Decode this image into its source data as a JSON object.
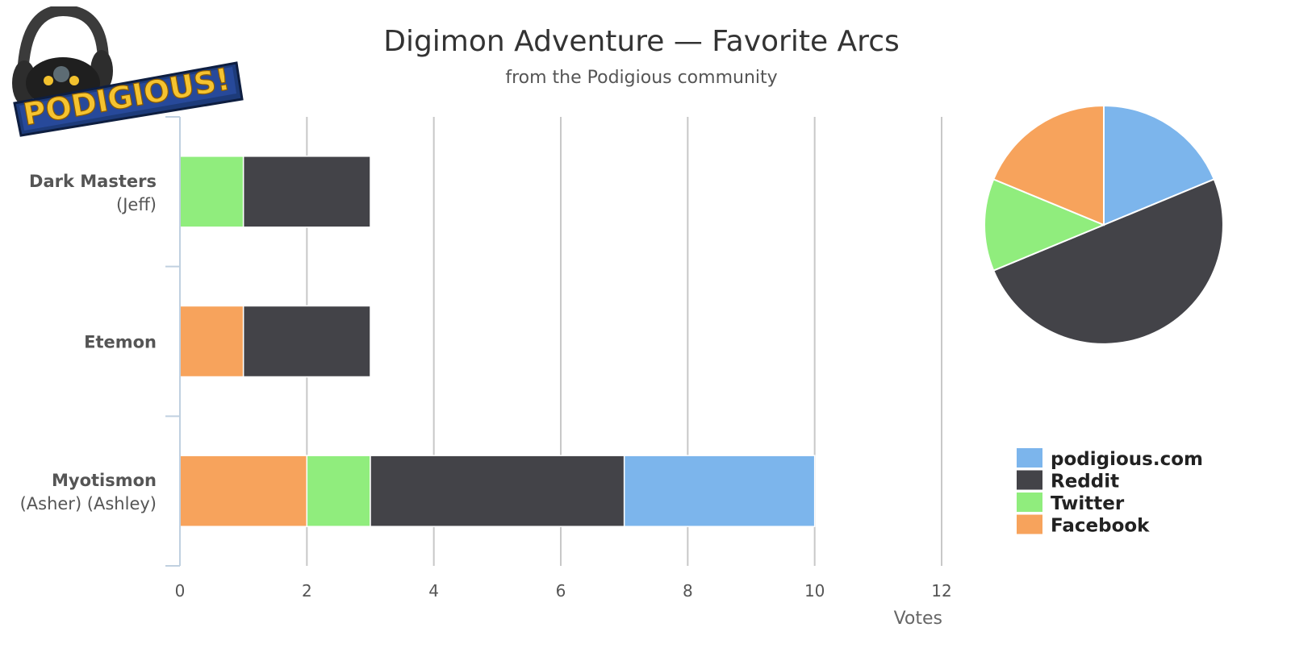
{
  "logo": {
    "text": "PODIGIOUS!"
  },
  "chart_data": [
    {
      "type": "bar",
      "orientation": "horizontal",
      "stacked": true,
      "title": "Digimon Adventure — Favorite Arcs",
      "subtitle": "from the Podigious community",
      "categories": [
        {
          "name": "Dark Masters",
          "detail": "(Jeff)"
        },
        {
          "name": "Etemon",
          "detail": ""
        },
        {
          "name": "Myotismon",
          "detail": "(Asher) (Ashley)"
        }
      ],
      "series": [
        {
          "name": "Facebook",
          "color": "#f7a35c",
          "values": [
            0,
            1,
            2
          ]
        },
        {
          "name": "Twitter",
          "color": "#90ed7d",
          "values": [
            1,
            0,
            1
          ]
        },
        {
          "name": "Reddit",
          "color": "#434348",
          "values": [
            2,
            2,
            4
          ]
        },
        {
          "name": "podigious.com",
          "color": "#7cb5ec",
          "values": [
            0,
            0,
            3
          ]
        }
      ],
      "xlabel": "Votes",
      "xlim": [
        0,
        12
      ],
      "xticks": [
        0,
        2,
        4,
        6,
        8,
        10,
        12
      ],
      "grid": true
    },
    {
      "type": "pie",
      "slices": [
        {
          "name": "podigious.com",
          "value": 3,
          "color": "#7cb5ec"
        },
        {
          "name": "Reddit",
          "value": 8,
          "color": "#434348"
        },
        {
          "name": "Twitter",
          "value": 2,
          "color": "#90ed7d"
        },
        {
          "name": "Facebook",
          "value": 3,
          "color": "#f7a35c"
        }
      ],
      "legend_position": "bottom-right"
    }
  ]
}
